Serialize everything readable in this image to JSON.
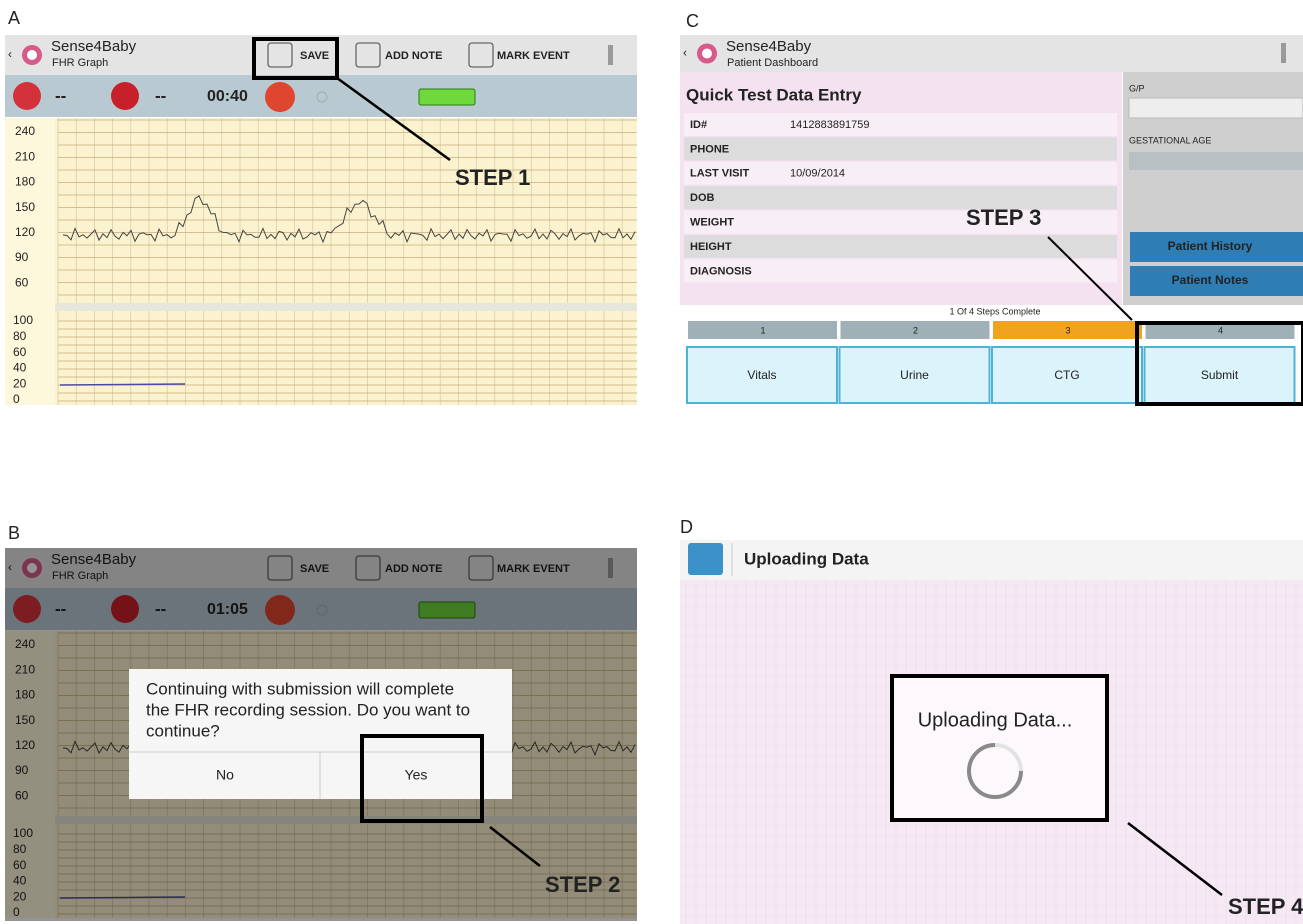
{
  "panel_a": {
    "letter": "A",
    "app_name": "Sense4Baby",
    "screen": "FHR Graph",
    "actions": [
      "SAVE",
      "ADD NOTE",
      "MARK EVENT"
    ],
    "fhr_reading": "--",
    "toco_reading": "--",
    "timer": "00:40",
    "fhr_axis": [
      "240",
      "210",
      "180",
      "150",
      "120",
      "90",
      "60"
    ],
    "toco_axis": [
      "100",
      "80",
      "60",
      "40",
      "20",
      "0"
    ],
    "step": "STEP 1"
  },
  "panel_b": {
    "letter": "B",
    "app_name": "Sense4Baby",
    "screen": "FHR Graph",
    "actions": [
      "SAVE",
      "ADD NOTE",
      "MARK EVENT"
    ],
    "fhr_reading": "--",
    "toco_reading": "--",
    "timer": "01:05",
    "fhr_axis": [
      "240",
      "210",
      "180",
      "150",
      "120",
      "90",
      "60"
    ],
    "toco_axis": [
      "100",
      "80",
      "60",
      "40",
      "20",
      "0"
    ],
    "dialog": {
      "message_lines": [
        "Continuing with submission will complete",
        "the FHR recording session. Do you want to",
        "continue?"
      ],
      "buttons": [
        "No",
        "Yes"
      ]
    },
    "step": "STEP 2"
  },
  "panel_c": {
    "letter": "C",
    "app_name": "Sense4Baby",
    "screen": "Patient Dashboard",
    "form_title": "Quick Test Data Entry",
    "rows": [
      {
        "label": "ID#",
        "value": "1412883891759"
      },
      {
        "label": "PHONE"
      },
      {
        "label": "LAST VISIT",
        "value": "10/09/2014"
      },
      {
        "label": "DOB"
      },
      {
        "label": "WEIGHT"
      },
      {
        "label": "HEIGHT"
      },
      {
        "label": "DIAGNOSIS"
      }
    ],
    "gp_label": "G/P",
    "gestational_label": "GESTATIONAL AGE",
    "side_buttons": [
      "Patient History",
      "Patient Notes"
    ],
    "progress_text": "1 Of 4 Steps Complete",
    "step_numbers": [
      "1",
      "2",
      "3",
      "4"
    ],
    "tabs": [
      "Vitals",
      "Urine",
      "CTG",
      "Submit"
    ],
    "step": "STEP 3"
  },
  "panel_d": {
    "letter": "D",
    "title": "Uploading Data",
    "message": "Uploading Data...",
    "step": "STEP 4"
  }
}
